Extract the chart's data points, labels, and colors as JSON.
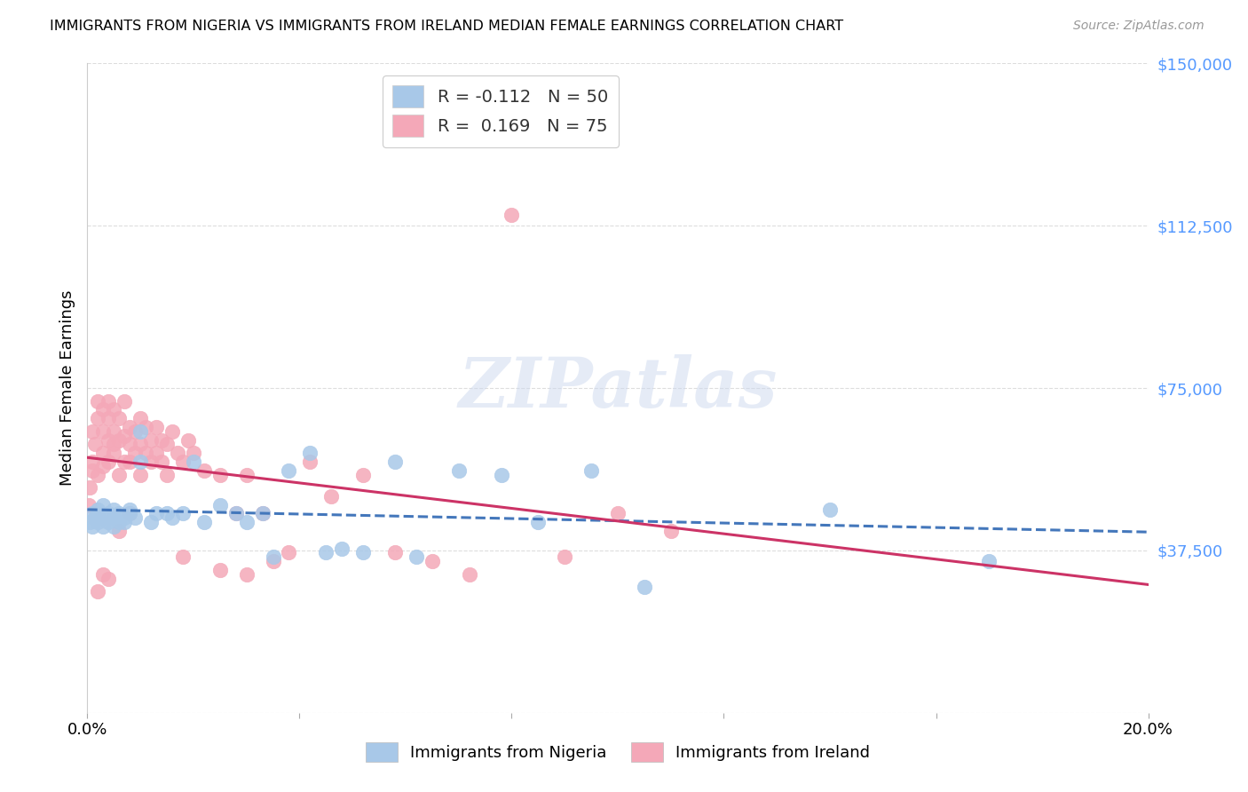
{
  "title": "IMMIGRANTS FROM NIGERIA VS IMMIGRANTS FROM IRELAND MEDIAN FEMALE EARNINGS CORRELATION CHART",
  "source": "Source: ZipAtlas.com",
  "ylabel": "Median Female Earnings",
  "yticks": [
    0,
    37500,
    75000,
    112500,
    150000
  ],
  "ytick_labels": [
    "",
    "$37,500",
    "$75,000",
    "$112,500",
    "$150,000"
  ],
  "xlim": [
    0.0,
    0.2
  ],
  "ylim": [
    0,
    150000
  ],
  "nigeria_R": -0.112,
  "nigeria_N": 50,
  "ireland_R": 0.169,
  "ireland_N": 75,
  "nigeria_color": "#a8c8e8",
  "ireland_color": "#f4a8b8",
  "nigeria_line_color": "#4477bb",
  "ireland_line_color": "#cc3366",
  "watermark": "ZIPatlas",
  "nigeria_scatter_x": [
    0.0005,
    0.001,
    0.001,
    0.0015,
    0.002,
    0.002,
    0.002,
    0.003,
    0.003,
    0.003,
    0.004,
    0.004,
    0.005,
    0.005,
    0.005,
    0.006,
    0.006,
    0.007,
    0.007,
    0.008,
    0.008,
    0.009,
    0.01,
    0.01,
    0.012,
    0.013,
    0.015,
    0.016,
    0.018,
    0.02,
    0.022,
    0.025,
    0.028,
    0.03,
    0.033,
    0.035,
    0.038,
    0.042,
    0.045,
    0.048,
    0.052,
    0.058,
    0.062,
    0.07,
    0.078,
    0.085,
    0.095,
    0.105,
    0.14,
    0.17
  ],
  "nigeria_scatter_y": [
    44000,
    46000,
    43000,
    45000,
    46000,
    44000,
    47000,
    43000,
    45000,
    48000,
    44000,
    46000,
    45000,
    43000,
    47000,
    44000,
    46000,
    45000,
    44000,
    46000,
    47000,
    45000,
    65000,
    58000,
    44000,
    46000,
    46000,
    45000,
    46000,
    58000,
    44000,
    48000,
    46000,
    44000,
    46000,
    36000,
    56000,
    60000,
    37000,
    38000,
    37000,
    58000,
    36000,
    56000,
    55000,
    44000,
    56000,
    29000,
    47000,
    35000
  ],
  "ireland_scatter_x": [
    0.0003,
    0.0005,
    0.001,
    0.001,
    0.001,
    0.0015,
    0.002,
    0.002,
    0.002,
    0.003,
    0.003,
    0.003,
    0.003,
    0.004,
    0.004,
    0.004,
    0.004,
    0.005,
    0.005,
    0.005,
    0.005,
    0.006,
    0.006,
    0.006,
    0.007,
    0.007,
    0.007,
    0.008,
    0.008,
    0.008,
    0.009,
    0.009,
    0.01,
    0.01,
    0.01,
    0.011,
    0.011,
    0.012,
    0.012,
    0.013,
    0.013,
    0.014,
    0.014,
    0.015,
    0.015,
    0.016,
    0.017,
    0.018,
    0.019,
    0.02,
    0.022,
    0.025,
    0.028,
    0.03,
    0.033,
    0.035,
    0.038,
    0.042,
    0.046,
    0.052,
    0.058,
    0.065,
    0.072,
    0.08,
    0.09,
    0.1,
    0.11,
    0.018,
    0.025,
    0.03,
    0.006,
    0.003,
    0.008,
    0.004,
    0.002
  ],
  "ireland_scatter_y": [
    48000,
    52000,
    56000,
    65000,
    58000,
    62000,
    55000,
    68000,
    72000,
    60000,
    65000,
    57000,
    70000,
    63000,
    68000,
    58000,
    72000,
    60000,
    65000,
    62000,
    70000,
    55000,
    63000,
    68000,
    58000,
    64000,
    72000,
    58000,
    66000,
    62000,
    60000,
    65000,
    55000,
    62000,
    68000,
    60000,
    66000,
    58000,
    63000,
    60000,
    66000,
    58000,
    63000,
    55000,
    62000,
    65000,
    60000,
    58000,
    63000,
    60000,
    56000,
    55000,
    46000,
    55000,
    46000,
    35000,
    37000,
    58000,
    50000,
    55000,
    37000,
    35000,
    32000,
    115000,
    36000,
    46000,
    42000,
    36000,
    33000,
    32000,
    42000,
    32000,
    46000,
    31000,
    28000
  ]
}
